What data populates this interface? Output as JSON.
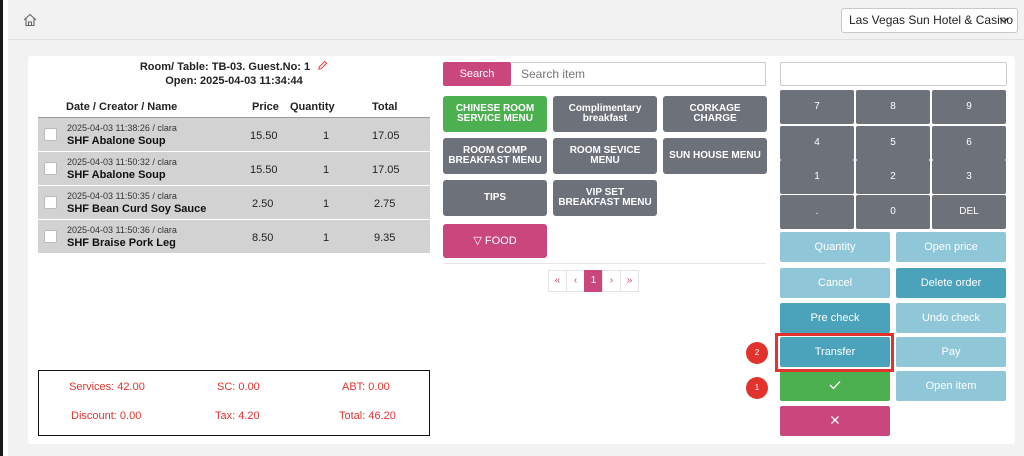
{
  "header": {
    "hotel": "Las Vegas Sun Hotel & Casino"
  },
  "order": {
    "room_line": "Room/ Table: TB-03. Guest.No: 1",
    "open_line": "Open: 2025-04-03 11:34:44",
    "columns": [
      "Date / Creator / Name",
      "Price",
      "Quantity",
      "Total"
    ],
    "items": [
      {
        "meta": "2025-04-03 11:38:26 / clara",
        "name": "SHF Abalone Soup",
        "price": "15.50",
        "qty": "1",
        "total": "17.05"
      },
      {
        "meta": "2025-04-03 11:50:32 / clara",
        "name": "SHF Abalone Soup",
        "price": "15.50",
        "qty": "1",
        "total": "17.05"
      },
      {
        "meta": "2025-04-03 11:50:35 / clara",
        "name": "SHF Bean Curd Soy Sauce",
        "price": "2.50",
        "qty": "1",
        "total": "2.75"
      },
      {
        "meta": "2025-04-03 11:50:36 / clara",
        "name": "SHF Braise Pork Leg",
        "price": "8.50",
        "qty": "1",
        "total": "9.35"
      }
    ]
  },
  "totals": {
    "services": "Services: 42.00",
    "sc": "SC: 0.00",
    "abt": "ABT: 0.00",
    "discount": "Discount: 0.00",
    "tax": "Tax: 4.20",
    "total": "Total: 46.20"
  },
  "search": {
    "button": "Search",
    "placeholder": "Search item"
  },
  "menus": [
    {
      "label": "CHINESE ROOM SERVICE MENU"
    },
    {
      "label": "Complimentary breakfast"
    },
    {
      "label": "CORKAGE CHARGE"
    },
    {
      "label": "ROOM COMP BREAKFAST MENU"
    },
    {
      "label": "ROOM SEVICE MENU"
    },
    {
      "label": "SUN HOUSE MENU"
    },
    {
      "label": "TIPS"
    },
    {
      "label": "VIP SET BREAKFAST MENU"
    }
  ],
  "food_button": "FOOD",
  "pager": {
    "first": "«",
    "prev": "‹",
    "current": "1",
    "next": "›",
    "last": "»"
  },
  "keypad": [
    "7",
    "8",
    "9",
    "4",
    "5",
    "6",
    "1",
    "2",
    "3",
    ".",
    "0",
    "DEL"
  ],
  "actions": {
    "quantity": "Quantity",
    "open_price": "Open price",
    "cancel": "Cancel",
    "delete_order": "Delete order",
    "pre_check": "Pre check",
    "undo_check": "Undo check",
    "transfer": "Transfer",
    "pay": "Pay",
    "open_item": "Open item"
  },
  "badges": {
    "one": "1",
    "two": "2"
  },
  "colors": {
    "accent_pink": "#c9477c",
    "green": "#4caf50",
    "key_gray": "#6c717a",
    "light_teal": "#8fc6d8",
    "teal": "#4aa2bb",
    "highlight_red": "#e2322e"
  }
}
